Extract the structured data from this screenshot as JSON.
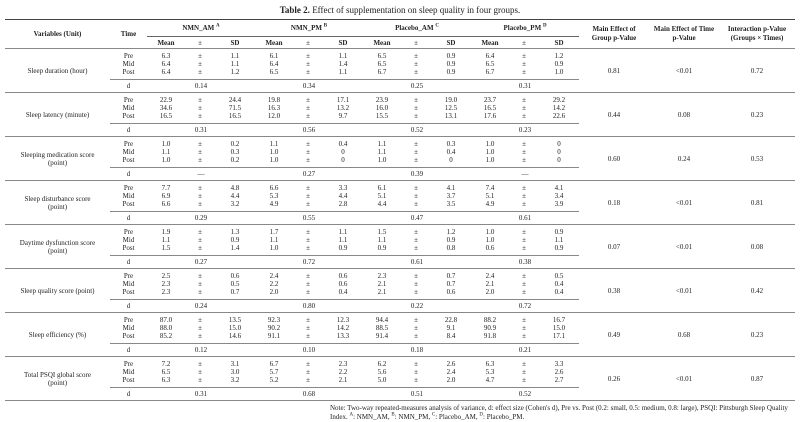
{
  "title": {
    "label": "Table 2.",
    "text": "Effect of supplementation on sleep quality in four groups."
  },
  "header": {
    "variables": "Variables (Unit)",
    "time": "Time",
    "groups": [
      {
        "name": "NMN_AM",
        "sup": "A"
      },
      {
        "name": "NMN_PM",
        "sup": "B"
      },
      {
        "name": "Placebo_AM",
        "sup": "C"
      },
      {
        "name": "Placebo_PM",
        "sup": "D"
      }
    ],
    "sub": {
      "mean": "Mean",
      "pm": "±",
      "sd": "SD"
    },
    "group_p": "Main Effect of Group p-Value",
    "time_p": "Main Effect of Time p-Value",
    "interaction_p": "Interaction p-Value (Groups × Times)"
  },
  "times": [
    "Pre",
    "Mid",
    "Post"
  ],
  "d_label": "d",
  "rows": [
    {
      "variable": "Sleep duration (hour)",
      "values": [
        [
          [
            "6.3",
            "1.1"
          ],
          [
            "6.4",
            "1.1"
          ],
          [
            "6.4",
            "1.2"
          ]
        ],
        [
          [
            "6.1",
            "1.1"
          ],
          [
            "6.4",
            "1.4"
          ],
          [
            "6.5",
            "1.1"
          ]
        ],
        [
          [
            "6.5",
            "0.9"
          ],
          [
            "6.5",
            "0.9"
          ],
          [
            "6.7",
            "0.9"
          ]
        ],
        [
          [
            "6.4",
            "1.2"
          ],
          [
            "6.5",
            "0.9"
          ],
          [
            "6.7",
            "1.0"
          ]
        ]
      ],
      "d": [
        "0.14",
        "0.34",
        "0.25",
        "0.31"
      ],
      "group_p": "0.81",
      "time_p": "<0.01",
      "interaction_p": "0.72"
    },
    {
      "variable": "Sleep latency (minute)",
      "values": [
        [
          [
            "22.9",
            "24.4"
          ],
          [
            "34.6",
            "71.5"
          ],
          [
            "16.5",
            "16.5"
          ]
        ],
        [
          [
            "19.8",
            "17.1"
          ],
          [
            "16.3",
            "13.2"
          ],
          [
            "12.0",
            "9.7"
          ]
        ],
        [
          [
            "23.9",
            "19.0"
          ],
          [
            "16.0",
            "12.5"
          ],
          [
            "15.5",
            "13.1"
          ]
        ],
        [
          [
            "23.7",
            "29.2"
          ],
          [
            "16.5",
            "14.2"
          ],
          [
            "17.6",
            "22.6"
          ]
        ]
      ],
      "d": [
        "0.31",
        "0.56",
        "0.52",
        "0.23"
      ],
      "group_p": "0.44",
      "time_p": "0.08",
      "interaction_p": "0.23"
    },
    {
      "variable": "Sleeping medication score (point)",
      "values": [
        [
          [
            "1.0",
            "0.2"
          ],
          [
            "1.1",
            "0.3"
          ],
          [
            "1.0",
            "0.2"
          ]
        ],
        [
          [
            "1.1",
            "0.4"
          ],
          [
            "1.0",
            "0"
          ],
          [
            "1.0",
            "0"
          ]
        ],
        [
          [
            "1.1",
            "0.3"
          ],
          [
            "1.1",
            "0.4"
          ],
          [
            "1.0",
            "0"
          ]
        ],
        [
          [
            "1.0",
            "0"
          ],
          [
            "1.0",
            "0"
          ],
          [
            "1.0",
            "0"
          ]
        ]
      ],
      "d": [
        "—",
        "0.27",
        "0.39",
        "—"
      ],
      "group_p": "0.60",
      "time_p": "0.24",
      "interaction_p": "0.53"
    },
    {
      "variable": "Sleep disturbance score (point)",
      "values": [
        [
          [
            "7.7",
            "4.8"
          ],
          [
            "6.9",
            "4.4"
          ],
          [
            "6.6",
            "3.2"
          ]
        ],
        [
          [
            "6.6",
            "3.3"
          ],
          [
            "5.3",
            "4.4"
          ],
          [
            "4.9",
            "2.8"
          ]
        ],
        [
          [
            "6.1",
            "4.1"
          ],
          [
            "5.1",
            "3.7"
          ],
          [
            "4.4",
            "3.5"
          ]
        ],
        [
          [
            "7.4",
            "4.1"
          ],
          [
            "5.1",
            "3.4"
          ],
          [
            "4.9",
            "3.9"
          ]
        ]
      ],
      "d": [
        "0.29",
        "0.55",
        "0.47",
        "0.61"
      ],
      "group_p": "0.18",
      "time_p": "<0.01",
      "interaction_p": "0.81"
    },
    {
      "variable": "Daytime dysfunction score (point)",
      "values": [
        [
          [
            "1.9",
            "1.3"
          ],
          [
            "1.1",
            "0.9"
          ],
          [
            "1.5",
            "1.4"
          ]
        ],
        [
          [
            "1.7",
            "1.1"
          ],
          [
            "1.1",
            "1.1"
          ],
          [
            "1.0",
            "0.9"
          ]
        ],
        [
          [
            "1.5",
            "1.2"
          ],
          [
            "1.1",
            "0.9"
          ],
          [
            "0.9",
            "0.8"
          ]
        ],
        [
          [
            "1.0",
            "0.9"
          ],
          [
            "1.0",
            "1.1"
          ],
          [
            "0.6",
            "0.9"
          ]
        ]
      ],
      "d": [
        "0.27",
        "0.72",
        "0.61",
        "0.38"
      ],
      "group_p": "0.07",
      "time_p": "<0.01",
      "interaction_p": "0.08"
    },
    {
      "variable": "Sleep quality score (point)",
      "values": [
        [
          [
            "2.5",
            "0.6"
          ],
          [
            "2.3",
            "0.5"
          ],
          [
            "2.3",
            "0.7"
          ]
        ],
        [
          [
            "2.4",
            "0.6"
          ],
          [
            "2.2",
            "0.6"
          ],
          [
            "2.0",
            "0.4"
          ]
        ],
        [
          [
            "2.3",
            "0.7"
          ],
          [
            "2.1",
            "0.7"
          ],
          [
            "2.1",
            "0.6"
          ]
        ],
        [
          [
            "2.4",
            "0.5"
          ],
          [
            "2.1",
            "0.4"
          ],
          [
            "2.0",
            "0.4"
          ]
        ]
      ],
      "d": [
        "0.24",
        "0.80",
        "0.22",
        "0.72"
      ],
      "group_p": "0.38",
      "time_p": "<0.01",
      "interaction_p": "0.42"
    },
    {
      "variable": "Sleep efficiency (%)",
      "values": [
        [
          [
            "87.0",
            "13.5"
          ],
          [
            "88.0",
            "15.0"
          ],
          [
            "85.2",
            "14.6"
          ]
        ],
        [
          [
            "92.3",
            "12.3"
          ],
          [
            "90.2",
            "14.2"
          ],
          [
            "91.1",
            "13.3"
          ]
        ],
        [
          [
            "94.4",
            "22.8"
          ],
          [
            "88.5",
            "9.1"
          ],
          [
            "91.4",
            "8.4"
          ]
        ],
        [
          [
            "88.2",
            "16.7"
          ],
          [
            "90.9",
            "15.0"
          ],
          [
            "91.8",
            "17.1"
          ]
        ]
      ],
      "d": [
        "0.12",
        "0.10",
        "0.18",
        "0.21"
      ],
      "group_p": "0.49",
      "time_p": "0.68",
      "interaction_p": "0.23"
    },
    {
      "variable": "Total PSQI global score (point)",
      "values": [
        [
          [
            "7.2",
            "3.1"
          ],
          [
            "6.5",
            "3.0"
          ],
          [
            "6.3",
            "3.2"
          ]
        ],
        [
          [
            "6.7",
            "2.3"
          ],
          [
            "5.7",
            "2.2"
          ],
          [
            "5.2",
            "2.1"
          ]
        ],
        [
          [
            "6.2",
            "2.6"
          ],
          [
            "5.6",
            "2.4"
          ],
          [
            "5.0",
            "2.0"
          ]
        ],
        [
          [
            "6.3",
            "3.3"
          ],
          [
            "5.3",
            "2.6"
          ],
          [
            "4.7",
            "2.7"
          ]
        ]
      ],
      "d": [
        "0.31",
        "0.68",
        "0.51",
        "0.52"
      ],
      "group_p": "0.26",
      "time_p": "<0.01",
      "interaction_p": "0.87"
    }
  ],
  "note": {
    "line1": "Note: Two-way repeated-measures analysis of variance, d: effect size (Cohen's d), Pre vs. Post (0.2: small, 0.5: medium, 0.8: large), PSQI: Pittsburgh Sleep Quality Index. ",
    "a": "A",
    "a_text": ": NMN_AM,",
    "b": "B",
    "b_text": ": NMN_PM, ",
    "c": "C",
    "c_text": ": Placebo_AM, ",
    "d": "D",
    "d_text": ": Placebo_PM."
  }
}
